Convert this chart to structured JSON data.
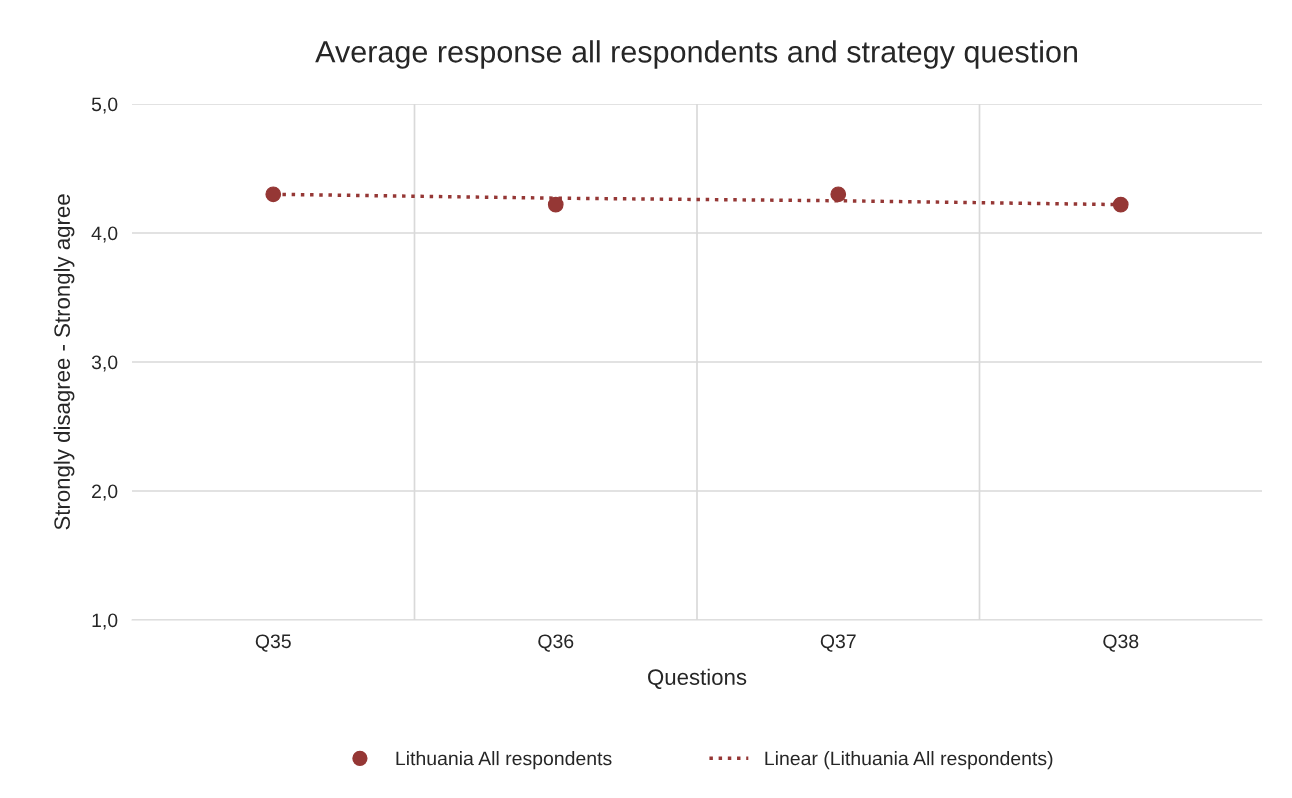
{
  "chart_data": {
    "type": "scatter",
    "title": "Average response all respondents and strategy question",
    "xlabel": "Questions",
    "ylabel": "Strongly disagree - Strongly agree",
    "categories": [
      "Q35",
      "Q36",
      "Q37",
      "Q38"
    ],
    "series": [
      {
        "name": "Lithuania All respondents",
        "color": "#953735",
        "values": [
          4.3,
          4.22,
          4.3,
          4.22
        ],
        "marker": "circle"
      },
      {
        "name": "Linear (Lithuania All respondents)",
        "color": "#953735",
        "values": [
          4.3,
          4.27,
          4.25,
          4.22
        ],
        "type": "line",
        "line_style": "dotted",
        "marker": "none"
      }
    ],
    "ylim": [
      1,
      5
    ],
    "yticks": [
      {
        "value": 1,
        "label": "1,0"
      },
      {
        "value": 2,
        "label": "2,0"
      },
      {
        "value": 3,
        "label": "3,0"
      },
      {
        "value": 4,
        "label": "4,0"
      },
      {
        "value": 5,
        "label": "5,0"
      }
    ],
    "grid": true,
    "legend": "bottom"
  }
}
